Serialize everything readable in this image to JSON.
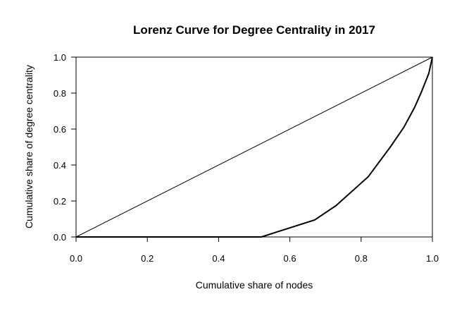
{
  "chart_data": {
    "type": "line",
    "title": "Lorenz Curve for Degree Centrality in 2017",
    "xlabel": "Cumulative share of nodes",
    "ylabel": "Cumulative share of degree centrality",
    "xlim": [
      0,
      1
    ],
    "ylim": [
      0,
      1
    ],
    "xticks": [
      "0.0",
      "0.2",
      "0.4",
      "0.6",
      "0.8",
      "1.0"
    ],
    "yticks": [
      "0.0",
      "0.2",
      "0.4",
      "0.6",
      "0.8",
      "1.0"
    ],
    "grid": false,
    "series": [
      {
        "role": "equality-line",
        "x": [
          0,
          1
        ],
        "y": [
          0,
          1
        ]
      },
      {
        "role": "lorenz-curve",
        "x": [
          0,
          0.52,
          0.67,
          0.73,
          0.82,
          0.88,
          0.92,
          0.95,
          0.97,
          0.99,
          1.0
        ],
        "y": [
          0,
          0,
          0.095,
          0.175,
          0.335,
          0.495,
          0.61,
          0.72,
          0.81,
          0.91,
          1.0
        ]
      }
    ]
  }
}
